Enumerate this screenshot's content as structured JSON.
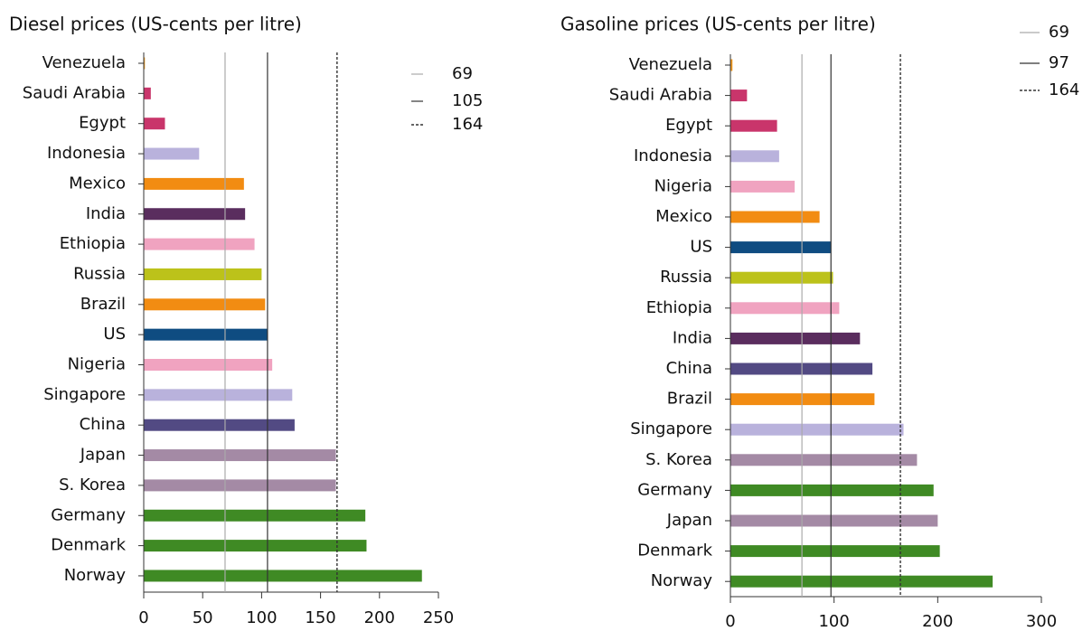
{
  "chart_data": [
    {
      "type": "bar",
      "orientation": "horizontal",
      "title": "Diesel prices (US-cents per litre)",
      "categories": [
        "Venezuela",
        "Saudi Arabia",
        "Egypt",
        "Indonesia",
        "Mexico",
        "India",
        "Ethiopia",
        "Russia",
        "Brazil",
        "US",
        "Nigeria",
        "Singapore",
        "China",
        "Japan",
        "S. Korea",
        "Germany",
        "Denmark",
        "Norway"
      ],
      "values": [
        1,
        6,
        18,
        47,
        85,
        86,
        94,
        100,
        103,
        105,
        109,
        126,
        128,
        163,
        163,
        188,
        189,
        236
      ],
      "colors": [
        "#f29a1f",
        "#c9356b",
        "#c9356b",
        "#b9b2dc",
        "#f28c12",
        "#5a2d5e",
        "#f0a3c0",
        "#bcc21a",
        "#f28c12",
        "#0f4c81",
        "#f0a3c0",
        "#b9b2dc",
        "#524a83",
        "#a48aa5",
        "#a48aa5",
        "#3f8a24",
        "#3f8a24",
        "#3f8a24"
      ],
      "xlim": [
        0,
        250
      ],
      "xticks": [
        0,
        50,
        100,
        150,
        200,
        250
      ],
      "reference_lines": [
        {
          "value": 69,
          "color": "#aaaaaa",
          "dashed": false
        },
        {
          "value": 105,
          "color": "#333333",
          "dashed": false
        },
        {
          "value": 164,
          "color": "#333333",
          "dashed": true
        }
      ]
    },
    {
      "type": "bar",
      "orientation": "horizontal",
      "title": "Gasoline prices (US-cents per litre)",
      "categories": [
        "Venezuela",
        "Saudi Arabia",
        "Egypt",
        "Indonesia",
        "Nigeria",
        "Mexico",
        "US",
        "Russia",
        "Ethiopia",
        "India",
        "China",
        "Brazil",
        "Singapore",
        "S. Korea",
        "Germany",
        "Japan",
        "Denmark",
        "Norway"
      ],
      "values": [
        2,
        16,
        45,
        47,
        62,
        86,
        97,
        99,
        105,
        125,
        137,
        139,
        167,
        180,
        196,
        200,
        202,
        253
      ],
      "colors": [
        "#f29a1f",
        "#c9356b",
        "#c9356b",
        "#b9b2dc",
        "#f0a3c0",
        "#f28c12",
        "#0f4c81",
        "#bcc21a",
        "#f0a3c0",
        "#5a2d5e",
        "#524a83",
        "#f28c12",
        "#b9b2dc",
        "#a48aa5",
        "#3f8a24",
        "#a48aa5",
        "#3f8a24",
        "#3f8a24"
      ],
      "xlim": [
        0,
        300
      ],
      "xticks": [
        0,
        100,
        200,
        300
      ],
      "reference_lines": [
        {
          "value": 69,
          "color": "#aaaaaa",
          "dashed": false
        },
        {
          "value": 97,
          "color": "#333333",
          "dashed": false
        },
        {
          "value": 164,
          "color": "#333333",
          "dashed": true
        }
      ]
    }
  ]
}
